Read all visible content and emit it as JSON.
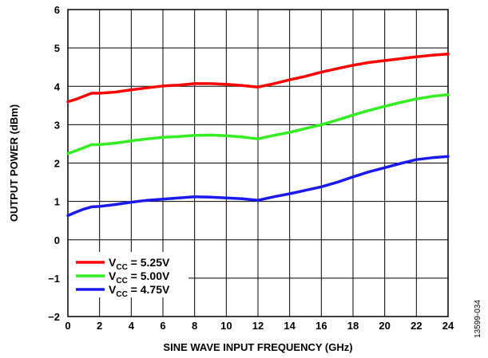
{
  "chart_data": {
    "type": "line",
    "xlabel": "SINE WAVE INPUT FREQUENCY (GHz)",
    "ylabel": "OUTPUT POWER (dBm)",
    "xlim": [
      0,
      24
    ],
    "ylim": [
      -2,
      6
    ],
    "xticks": [
      "0",
      "2",
      "4",
      "6",
      "8",
      "10",
      "12",
      "14",
      "16",
      "18",
      "20",
      "22",
      "24"
    ],
    "yticks": [
      "6",
      "5",
      "4",
      "3",
      "2",
      "1",
      "0",
      "−1",
      "−2"
    ],
    "grid": true,
    "legend_position": "bottom-left",
    "figure_id": "13599-034",
    "series": [
      {
        "legend_main": "V",
        "legend_sub": "CC",
        "legend_value": " = 5.25V",
        "color": "#ff0000",
        "x": [
          0,
          0.5,
          1,
          1.5,
          2,
          3,
          4,
          5,
          6,
          7,
          8,
          9,
          10,
          11,
          12,
          13,
          14,
          15,
          16,
          17,
          18,
          19,
          20,
          21,
          22,
          23,
          24
        ],
        "y": [
          3.6,
          3.66,
          3.74,
          3.82,
          3.82,
          3.85,
          3.91,
          3.96,
          4.01,
          4.03,
          4.07,
          4.07,
          4.05,
          4.02,
          3.98,
          4.07,
          4.17,
          4.26,
          4.37,
          4.46,
          4.55,
          4.62,
          4.67,
          4.72,
          4.77,
          4.81,
          4.84
        ]
      },
      {
        "legend_main": "V",
        "legend_sub": "CC",
        "legend_value": " = 5.00V",
        "color": "#33ee22",
        "x": [
          0,
          0.5,
          1,
          1.5,
          2,
          3,
          4,
          5,
          6,
          7,
          8,
          9,
          10,
          11,
          12,
          13,
          14,
          15,
          16,
          17,
          18,
          19,
          20,
          21,
          22,
          23,
          24
        ],
        "y": [
          2.25,
          2.32,
          2.4,
          2.48,
          2.48,
          2.52,
          2.58,
          2.63,
          2.67,
          2.69,
          2.72,
          2.73,
          2.71,
          2.68,
          2.63,
          2.72,
          2.8,
          2.9,
          3.0,
          3.12,
          3.25,
          3.37,
          3.48,
          3.58,
          3.67,
          3.74,
          3.78
        ]
      },
      {
        "legend_main": "V",
        "legend_sub": "CC",
        "legend_value": " = 4.75V",
        "color": "#1a1aee",
        "x": [
          0,
          0.5,
          1,
          1.5,
          2,
          3,
          4,
          5,
          6,
          7,
          8,
          9,
          10,
          11,
          12,
          13,
          14,
          15,
          16,
          17,
          18,
          19,
          20,
          21,
          22,
          23,
          24
        ],
        "y": [
          0.63,
          0.72,
          0.8,
          0.86,
          0.87,
          0.92,
          0.98,
          1.03,
          1.06,
          1.09,
          1.12,
          1.11,
          1.09,
          1.07,
          1.03,
          1.12,
          1.2,
          1.29,
          1.38,
          1.5,
          1.64,
          1.77,
          1.88,
          1.99,
          2.09,
          2.14,
          2.17
        ]
      }
    ]
  }
}
